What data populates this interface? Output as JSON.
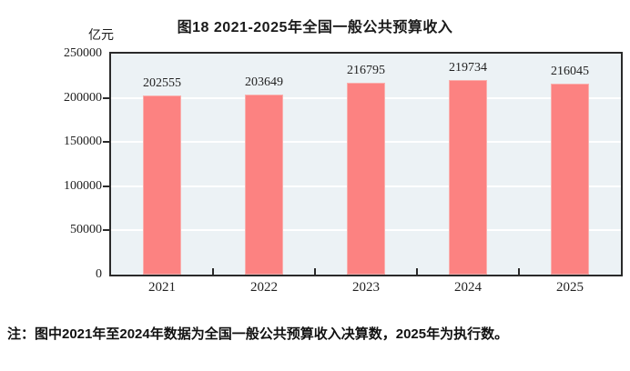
{
  "chart_data": {
    "type": "bar",
    "title": "图18  2021-2025年全国一般公共预算收入",
    "unit_label": "亿元",
    "categories": [
      "2021",
      "2022",
      "2023",
      "2024",
      "2025"
    ],
    "values": [
      202555,
      203649,
      216795,
      219734,
      216045
    ],
    "xlabel": "",
    "ylabel": "亿元",
    "ylim": [
      0,
      250000
    ],
    "ytick_step": 50000,
    "ytick_labels": [
      "0",
      "50000",
      "100000",
      "150000",
      "200000",
      "250000"
    ],
    "grid": "horizontal white gridlines at each 50000",
    "legend": "none",
    "bar_color": "#fc8281",
    "bar_border_color": "#f9afad",
    "plot_background": "#ecf2f5",
    "axis_color": "#2a2a2a"
  },
  "note": "注：图中2021年至2024年数据为全国一般公共预算收入决算数，2025年为执行数。"
}
